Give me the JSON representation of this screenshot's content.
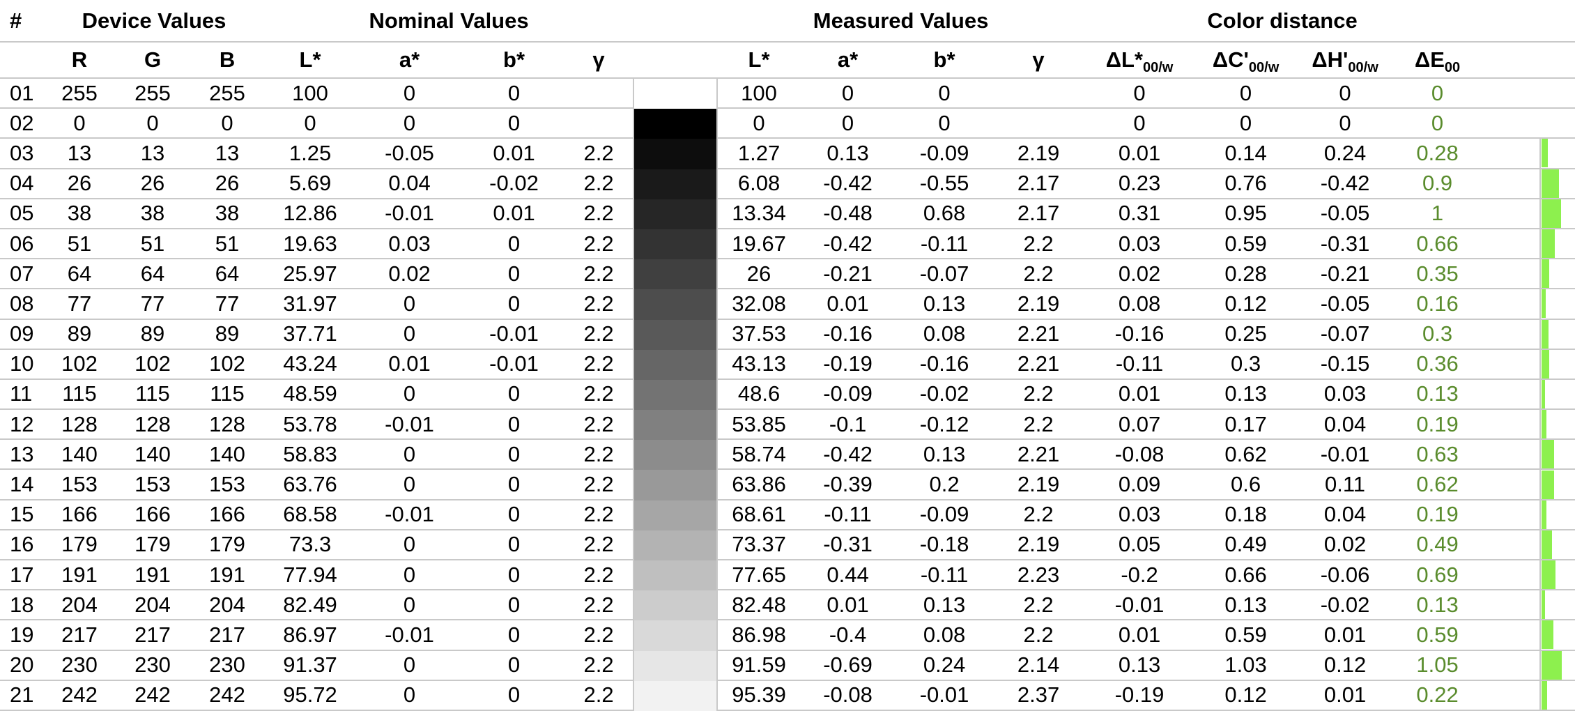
{
  "colors": {
    "grid_line": "#c9c9c9",
    "delta_e_text": "#5a8c2d",
    "bar_fill": "#8df04e",
    "text": "#000000",
    "background": "#ffffff"
  },
  "header": {
    "index_label": "#",
    "groups": {
      "device": "Device Values",
      "nominal": "Nominal Values",
      "measured": "Measured Values",
      "distance": "Color distance"
    },
    "device_cols": {
      "r": "R",
      "g": "G",
      "b": "B"
    },
    "lab_cols": {
      "l": "L*",
      "a": "a*",
      "b": "b*",
      "gamma": "γ"
    },
    "distance_cols": [
      {
        "main": "ΔL*",
        "sub": "00/w"
      },
      {
        "main": "ΔC'",
        "sub": "00/w"
      },
      {
        "main": "ΔH'",
        "sub": "00/w"
      },
      {
        "main": "ΔE",
        "sub": "00"
      }
    ]
  },
  "rows": [
    {
      "n": "01",
      "rgb": [
        255,
        255,
        255
      ],
      "nominal": [
        "100",
        "0",
        "0",
        ""
      ],
      "measured": [
        "100",
        "0",
        "0",
        ""
      ],
      "distance": [
        "0",
        "0",
        "0"
      ],
      "delta_e": "0"
    },
    {
      "n": "02",
      "rgb": [
        0,
        0,
        0
      ],
      "nominal": [
        "0",
        "0",
        "0",
        ""
      ],
      "measured": [
        "0",
        "0",
        "0",
        ""
      ],
      "distance": [
        "0",
        "0",
        "0"
      ],
      "delta_e": "0"
    },
    {
      "n": "03",
      "rgb": [
        13,
        13,
        13
      ],
      "nominal": [
        "1.25",
        "-0.05",
        "0.01",
        "2.2"
      ],
      "measured": [
        "1.27",
        "0.13",
        "-0.09",
        "2.19"
      ],
      "distance": [
        "0.01",
        "0.14",
        "0.24"
      ],
      "delta_e": "0.28"
    },
    {
      "n": "04",
      "rgb": [
        26,
        26,
        26
      ],
      "nominal": [
        "5.69",
        "0.04",
        "-0.02",
        "2.2"
      ],
      "measured": [
        "6.08",
        "-0.42",
        "-0.55",
        "2.17"
      ],
      "distance": [
        "0.23",
        "0.76",
        "-0.42"
      ],
      "delta_e": "0.9"
    },
    {
      "n": "05",
      "rgb": [
        38,
        38,
        38
      ],
      "nominal": [
        "12.86",
        "-0.01",
        "0.01",
        "2.2"
      ],
      "measured": [
        "13.34",
        "-0.48",
        "0.68",
        "2.17"
      ],
      "distance": [
        "0.31",
        "0.95",
        "-0.05"
      ],
      "delta_e": "1"
    },
    {
      "n": "06",
      "rgb": [
        51,
        51,
        51
      ],
      "nominal": [
        "19.63",
        "0.03",
        "0",
        "2.2"
      ],
      "measured": [
        "19.67",
        "-0.42",
        "-0.11",
        "2.2"
      ],
      "distance": [
        "0.03",
        "0.59",
        "-0.31"
      ],
      "delta_e": "0.66"
    },
    {
      "n": "07",
      "rgb": [
        64,
        64,
        64
      ],
      "nominal": [
        "25.97",
        "0.02",
        "0",
        "2.2"
      ],
      "measured": [
        "26",
        "-0.21",
        "-0.07",
        "2.2"
      ],
      "distance": [
        "0.02",
        "0.28",
        "-0.21"
      ],
      "delta_e": "0.35"
    },
    {
      "n": "08",
      "rgb": [
        77,
        77,
        77
      ],
      "nominal": [
        "31.97",
        "0",
        "0",
        "2.2"
      ],
      "measured": [
        "32.08",
        "0.01",
        "0.13",
        "2.19"
      ],
      "distance": [
        "0.08",
        "0.12",
        "-0.05"
      ],
      "delta_e": "0.16"
    },
    {
      "n": "09",
      "rgb": [
        89,
        89,
        89
      ],
      "nominal": [
        "37.71",
        "0",
        "-0.01",
        "2.2"
      ],
      "measured": [
        "37.53",
        "-0.16",
        "0.08",
        "2.21"
      ],
      "distance": [
        "-0.16",
        "0.25",
        "-0.07"
      ],
      "delta_e": "0.3"
    },
    {
      "n": "10",
      "rgb": [
        102,
        102,
        102
      ],
      "nominal": [
        "43.24",
        "0.01",
        "-0.01",
        "2.2"
      ],
      "measured": [
        "43.13",
        "-0.19",
        "-0.16",
        "2.21"
      ],
      "distance": [
        "-0.11",
        "0.3",
        "-0.15"
      ],
      "delta_e": "0.36"
    },
    {
      "n": "11",
      "rgb": [
        115,
        115,
        115
      ],
      "nominal": [
        "48.59",
        "0",
        "0",
        "2.2"
      ],
      "measured": [
        "48.6",
        "-0.09",
        "-0.02",
        "2.2"
      ],
      "distance": [
        "0.01",
        "0.13",
        "0.03"
      ],
      "delta_e": "0.13"
    },
    {
      "n": "12",
      "rgb": [
        128,
        128,
        128
      ],
      "nominal": [
        "53.78",
        "-0.01",
        "0",
        "2.2"
      ],
      "measured": [
        "53.85",
        "-0.1",
        "-0.12",
        "2.2"
      ],
      "distance": [
        "0.07",
        "0.17",
        "0.04"
      ],
      "delta_e": "0.19"
    },
    {
      "n": "13",
      "rgb": [
        140,
        140,
        140
      ],
      "nominal": [
        "58.83",
        "0",
        "0",
        "2.2"
      ],
      "measured": [
        "58.74",
        "-0.42",
        "0.13",
        "2.21"
      ],
      "distance": [
        "-0.08",
        "0.62",
        "-0.01"
      ],
      "delta_e": "0.63"
    },
    {
      "n": "14",
      "rgb": [
        153,
        153,
        153
      ],
      "nominal": [
        "63.76",
        "0",
        "0",
        "2.2"
      ],
      "measured": [
        "63.86",
        "-0.39",
        "0.2",
        "2.19"
      ],
      "distance": [
        "0.09",
        "0.6",
        "0.11"
      ],
      "delta_e": "0.62"
    },
    {
      "n": "15",
      "rgb": [
        166,
        166,
        166
      ],
      "nominal": [
        "68.58",
        "-0.01",
        "0",
        "2.2"
      ],
      "measured": [
        "68.61",
        "-0.11",
        "-0.09",
        "2.2"
      ],
      "distance": [
        "0.03",
        "0.18",
        "0.04"
      ],
      "delta_e": "0.19"
    },
    {
      "n": "16",
      "rgb": [
        179,
        179,
        179
      ],
      "nominal": [
        "73.3",
        "0",
        "0",
        "2.2"
      ],
      "measured": [
        "73.37",
        "-0.31",
        "-0.18",
        "2.19"
      ],
      "distance": [
        "0.05",
        "0.49",
        "0.02"
      ],
      "delta_e": "0.49"
    },
    {
      "n": "17",
      "rgb": [
        191,
        191,
        191
      ],
      "nominal": [
        "77.94",
        "0",
        "0",
        "2.2"
      ],
      "measured": [
        "77.65",
        "0.44",
        "-0.11",
        "2.23"
      ],
      "distance": [
        "-0.2",
        "0.66",
        "-0.06"
      ],
      "delta_e": "0.69"
    },
    {
      "n": "18",
      "rgb": [
        204,
        204,
        204
      ],
      "nominal": [
        "82.49",
        "0",
        "0",
        "2.2"
      ],
      "measured": [
        "82.48",
        "0.01",
        "0.13",
        "2.2"
      ],
      "distance": [
        "-0.01",
        "0.13",
        "-0.02"
      ],
      "delta_e": "0.13"
    },
    {
      "n": "19",
      "rgb": [
        217,
        217,
        217
      ],
      "nominal": [
        "86.97",
        "-0.01",
        "0",
        "2.2"
      ],
      "measured": [
        "86.98",
        "-0.4",
        "0.08",
        "2.2"
      ],
      "distance": [
        "0.01",
        "0.59",
        "0.01"
      ],
      "delta_e": "0.59"
    },
    {
      "n": "20",
      "rgb": [
        230,
        230,
        230
      ],
      "nominal": [
        "91.37",
        "0",
        "0",
        "2.2"
      ],
      "measured": [
        "91.59",
        "-0.69",
        "0.24",
        "2.14"
      ],
      "distance": [
        "0.13",
        "1.03",
        "0.12"
      ],
      "delta_e": "1.05"
    },
    {
      "n": "21",
      "rgb": [
        242,
        242,
        242
      ],
      "nominal": [
        "95.72",
        "0",
        "0",
        "2.2"
      ],
      "measured": [
        "95.39",
        "-0.08",
        "-0.01",
        "2.37"
      ],
      "distance": [
        "-0.19",
        "0.12",
        "0.01"
      ],
      "delta_e": "0.22"
    }
  ]
}
